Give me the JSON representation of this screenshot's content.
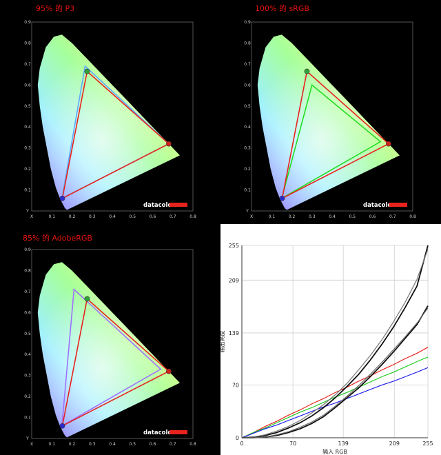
{
  "captions": {
    "p3": "95% 的 P3",
    "srgb": "100% 的 sRGB",
    "adobe": "85% 的 AdobeRGB"
  },
  "brand": "datacolor",
  "colors": {
    "background": "#000000",
    "measured": "#e8231d",
    "caption": "#e8140f",
    "p3_ref": "#5aa9ff",
    "srgb_ref": "#22dd22",
    "adobe_ref": "#a070ff"
  },
  "chart_data": [
    {
      "type": "scatter",
      "name": "cie-p3",
      "x_ticks": [
        "X",
        "0.1",
        "0.2",
        "0.3",
        "0.4",
        "0.5",
        "0.6",
        "0.7",
        "0.8"
      ],
      "y_ticks": [
        "Y",
        "0.1",
        "0.2",
        "0.3",
        "0.4",
        "0.5",
        "0.6",
        "0.7",
        "0.8",
        "0.9"
      ],
      "xlim": [
        0,
        0.8
      ],
      "ylim": [
        0,
        0.9
      ],
      "measured": [
        [
          0.68,
          0.32
        ],
        [
          0.275,
          0.665
        ],
        [
          0.152,
          0.06
        ]
      ],
      "reference": [
        [
          0.68,
          0.32
        ],
        [
          0.265,
          0.69
        ],
        [
          0.15,
          0.06
        ]
      ]
    },
    {
      "type": "scatter",
      "name": "cie-srgb",
      "x_ticks": [
        "X",
        "0.1",
        "0.2",
        "0.3",
        "0.4",
        "0.5",
        "0.6",
        "0.7",
        "0.8"
      ],
      "y_ticks": [
        "Y",
        "0.1",
        "0.2",
        "0.3",
        "0.4",
        "0.5",
        "0.6",
        "0.7",
        "0.8",
        "0.9"
      ],
      "xlim": [
        0,
        0.8
      ],
      "ylim": [
        0,
        0.9
      ],
      "measured": [
        [
          0.68,
          0.32
        ],
        [
          0.275,
          0.665
        ],
        [
          0.152,
          0.06
        ]
      ],
      "reference": [
        [
          0.64,
          0.33
        ],
        [
          0.3,
          0.6
        ],
        [
          0.15,
          0.06
        ]
      ]
    },
    {
      "type": "scatter",
      "name": "cie-adobe",
      "x_ticks": [
        "X",
        "0.1",
        "0.2",
        "0.3",
        "0.4",
        "0.5",
        "0.6",
        "0.7",
        "0.8"
      ],
      "y_ticks": [
        "Y",
        "0.1",
        "0.2",
        "0.3",
        "0.4",
        "0.5",
        "0.6",
        "0.7",
        "0.8",
        "0.9"
      ],
      "xlim": [
        0,
        0.8
      ],
      "ylim": [
        0,
        0.9
      ],
      "measured": [
        [
          0.68,
          0.32
        ],
        [
          0.275,
          0.665
        ],
        [
          0.152,
          0.06
        ]
      ],
      "reference": [
        [
          0.64,
          0.33
        ],
        [
          0.21,
          0.71
        ],
        [
          0.15,
          0.06
        ]
      ]
    },
    {
      "type": "line",
      "name": "tone-response",
      "xlabel": "输入 RGB",
      "ylabel": "输出亮度",
      "x_ticks": [
        0,
        70,
        139,
        209,
        255
      ],
      "y_ticks": [
        0,
        70,
        139,
        209,
        255
      ],
      "xlim": [
        0,
        255
      ],
      "ylim": [
        0,
        255
      ],
      "grid": true,
      "x": [
        0,
        16,
        32,
        48,
        64,
        80,
        96,
        112,
        128,
        144,
        160,
        176,
        192,
        208,
        224,
        240,
        255
      ],
      "series": [
        {
          "color": "#e8231d",
          "values": [
            0,
            7,
            15,
            22,
            30,
            37,
            45,
            52,
            60,
            67,
            75,
            82,
            90,
            97,
            105,
            112,
            120
          ]
        },
        {
          "color": "#22cc22",
          "values": [
            0,
            7,
            13,
            20,
            27,
            34,
            40,
            47,
            54,
            60,
            67,
            74,
            81,
            87,
            94,
            101,
            107
          ]
        },
        {
          "color": "#2222ee",
          "values": [
            0,
            6,
            12,
            17,
            23,
            29,
            35,
            41,
            46,
            52,
            58,
            64,
            70,
            75,
            81,
            87,
            93
          ]
        },
        {
          "color": "#111111",
          "values": [
            0,
            1,
            3,
            7,
            13,
            20,
            29,
            40,
            53,
            68,
            84,
            103,
            124,
            147,
            173,
            201,
            255
          ]
        },
        {
          "color": "#777777",
          "values": [
            0,
            1,
            4,
            9,
            15,
            23,
            33,
            44,
            57,
            72,
            90,
            109,
            130,
            154,
            180,
            210,
            250
          ]
        },
        {
          "color": "#111111",
          "values": [
            0,
            0,
            1,
            3,
            7,
            12,
            19,
            28,
            40,
            53,
            66,
            81,
            97,
            114,
            132,
            150,
            175
          ]
        },
        {
          "color": "#666666",
          "values": [
            0,
            0,
            1,
            4,
            8,
            14,
            21,
            30,
            42,
            55,
            69,
            84,
            100,
            117,
            134,
            152,
            172
          ]
        }
      ]
    }
  ]
}
